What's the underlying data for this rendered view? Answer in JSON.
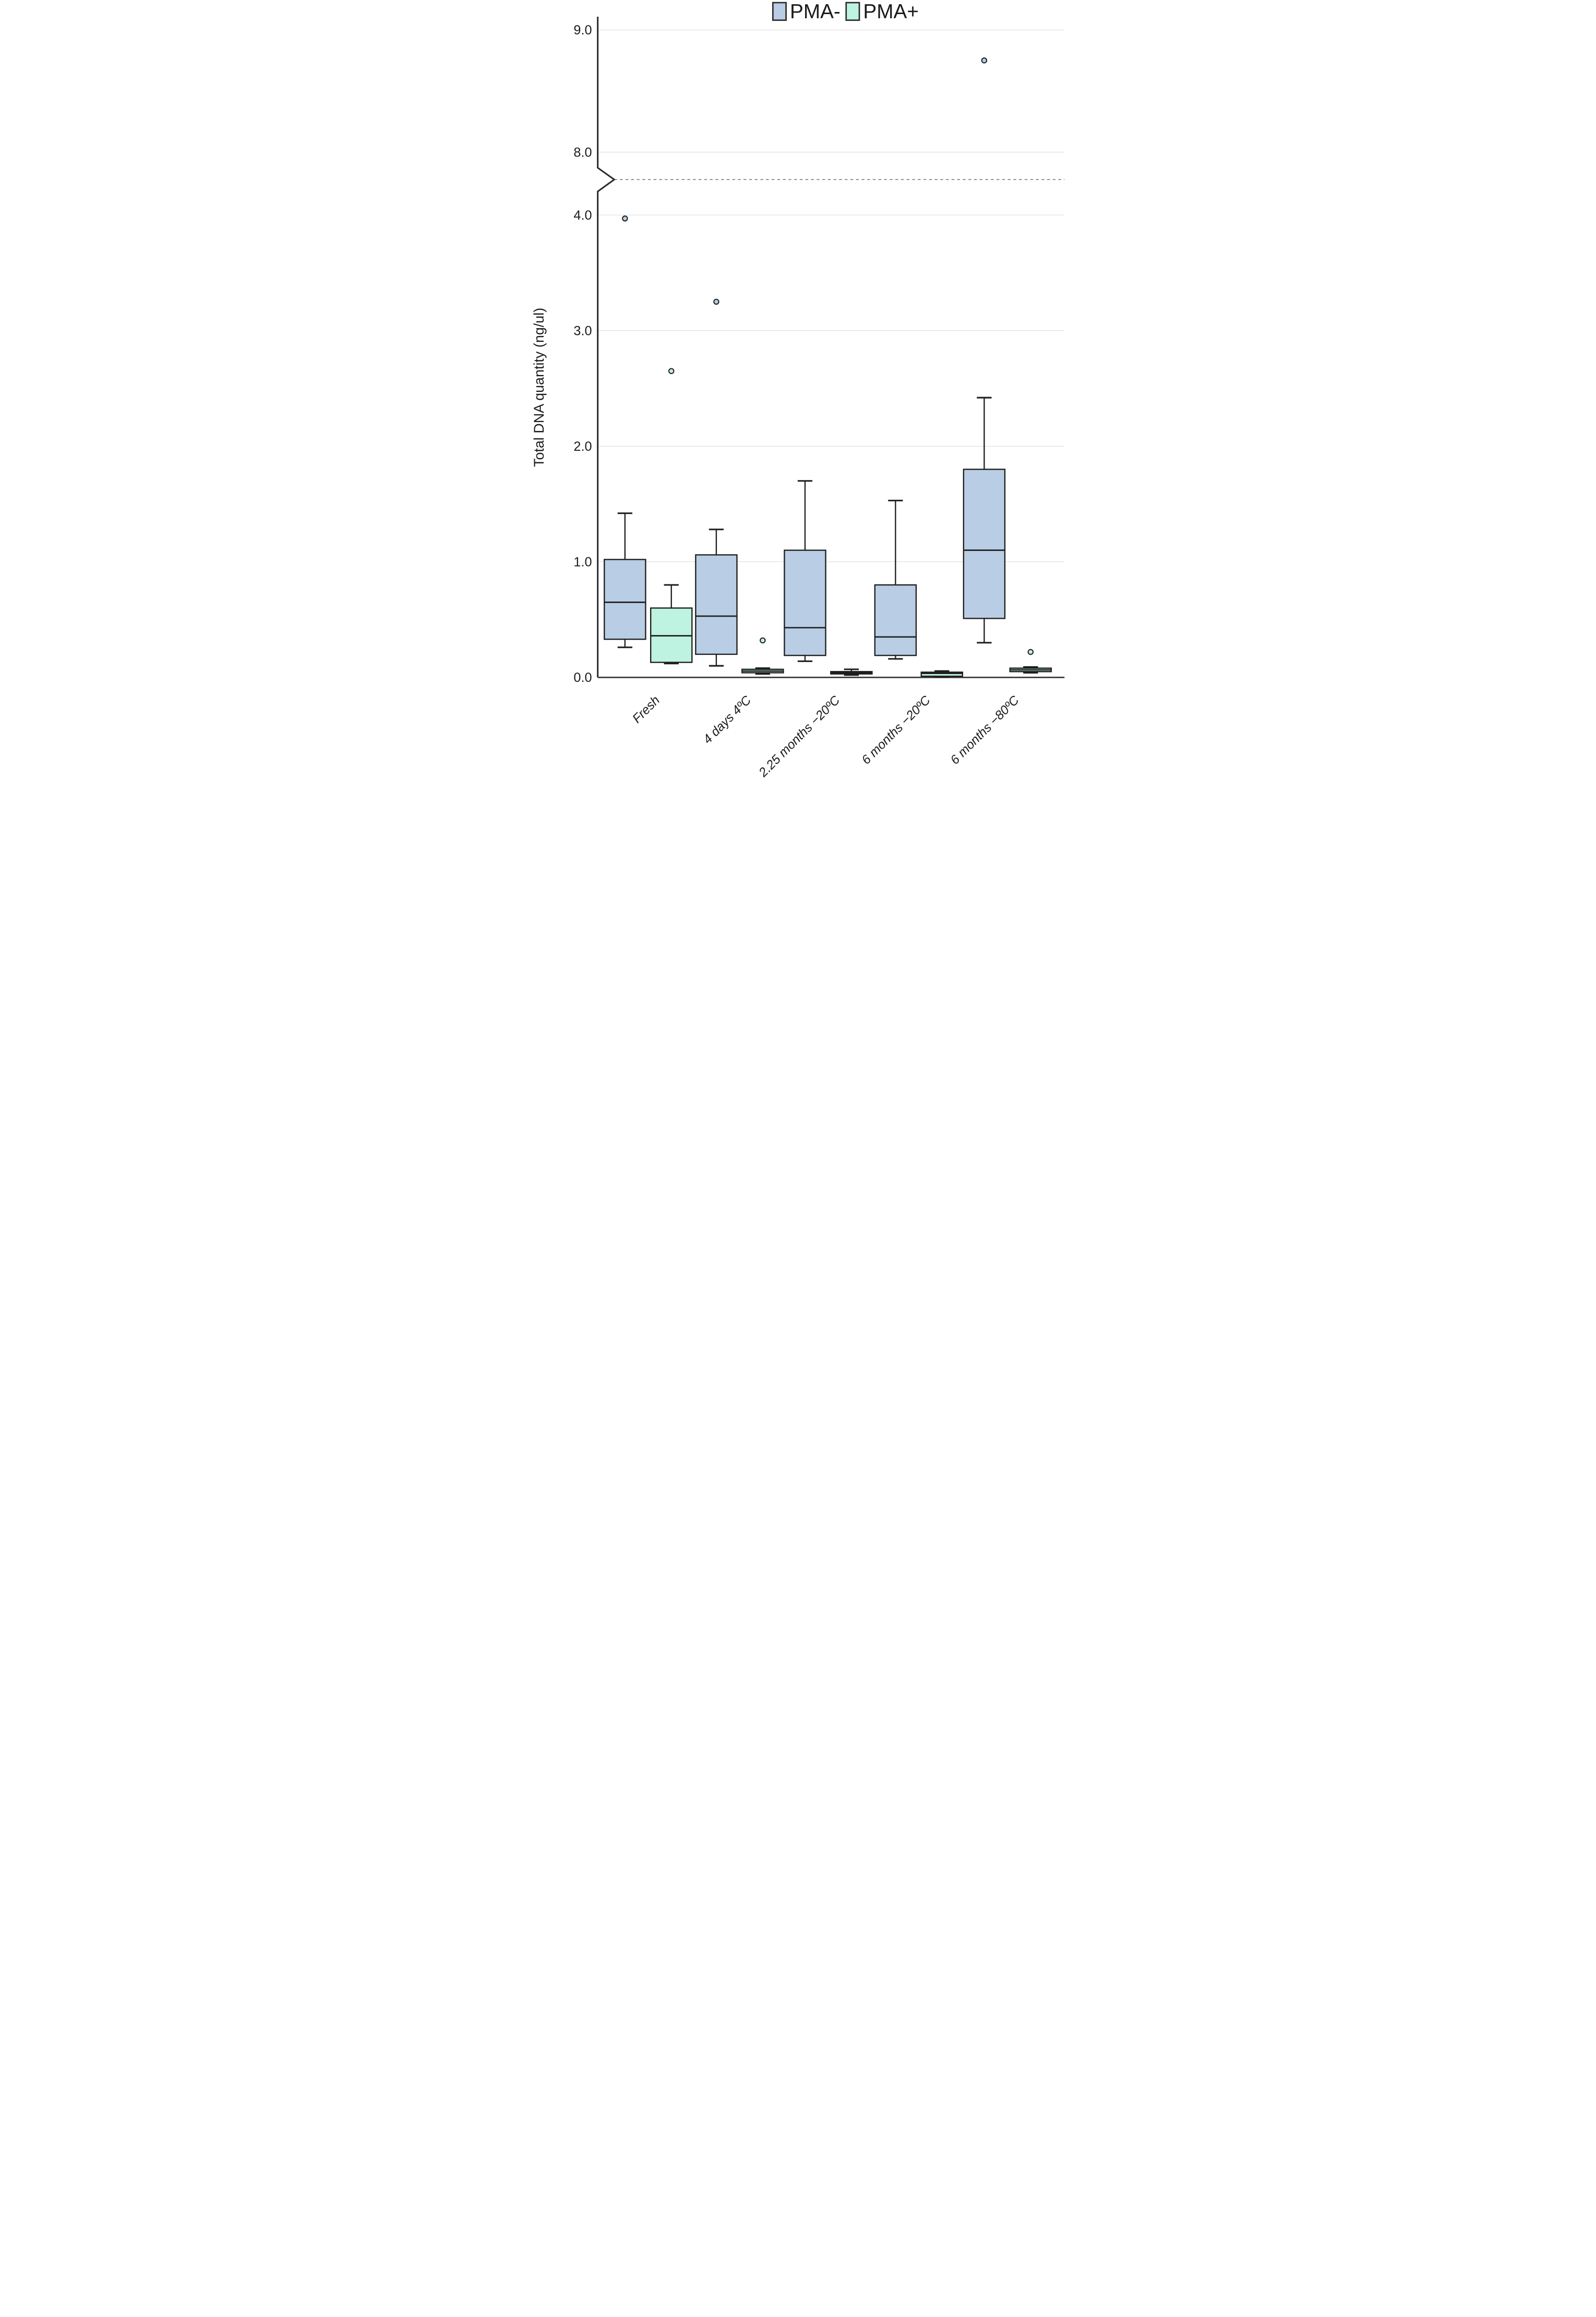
{
  "chart_data": {
    "type": "boxplot",
    "title": "",
    "ylabel": "Total DNA quantity (ng/ul)",
    "xlabel": "",
    "grid": "horizontal",
    "legend_position": "top-center",
    "axis_break": {
      "enabled": true,
      "lower_range": [
        0.0,
        4.3
      ],
      "upper_range": [
        7.8,
        9.3
      ],
      "dashed_line_at_break": true
    },
    "y_ticks_lower": [
      "0.0",
      "1.0",
      "2.0",
      "3.0",
      "4.0"
    ],
    "y_ticks_upper": [
      "8.0",
      "9.0"
    ],
    "categories": [
      "Fresh",
      "4 days 4ºC",
      "2.25 months −20ºC",
      "6 months −20ºC",
      "6 months −80ºC"
    ],
    "legend": [
      {
        "name": "PMA-",
        "color": "#b9cde4"
      },
      {
        "name": "PMA+",
        "color": "#bdf3e0"
      }
    ],
    "series": [
      {
        "name": "PMA-",
        "color": "#b9cde4",
        "boxes": [
          {
            "category": "Fresh",
            "whisker_low": 0.26,
            "q1": 0.33,
            "median": 0.65,
            "q3": 1.02,
            "whisker_high": 1.42,
            "outliers": [
              3.97
            ]
          },
          {
            "category": "4 days 4ºC",
            "whisker_low": 0.1,
            "q1": 0.2,
            "median": 0.53,
            "q3": 1.06,
            "whisker_high": 1.28,
            "outliers": [
              3.25
            ]
          },
          {
            "category": "2.25 months −20ºC",
            "whisker_low": 0.14,
            "q1": 0.19,
            "median": 0.43,
            "q3": 1.1,
            "whisker_high": 1.7,
            "outliers": []
          },
          {
            "category": "6 months −20ºC",
            "whisker_low": 0.16,
            "q1": 0.19,
            "median": 0.35,
            "q3": 0.8,
            "whisker_high": 1.53,
            "outliers": []
          },
          {
            "category": "6 months −80ºC",
            "whisker_low": 0.3,
            "q1": 0.51,
            "median": 1.1,
            "q3": 1.8,
            "whisker_high": 2.42,
            "outliers": [
              8.75
            ]
          }
        ]
      },
      {
        "name": "PMA+",
        "color": "#bdf3e0",
        "boxes": [
          {
            "category": "Fresh",
            "whisker_low": 0.12,
            "q1": 0.13,
            "median": 0.36,
            "q3": 0.6,
            "whisker_high": 0.8,
            "outliers": [
              2.65
            ]
          },
          {
            "category": "4 days 4ºC",
            "whisker_low": 0.03,
            "q1": 0.04,
            "median": 0.055,
            "q3": 0.07,
            "whisker_high": 0.08,
            "outliers": [
              0.32
            ]
          },
          {
            "category": "2.25 months −20ºC",
            "whisker_low": 0.02,
            "q1": 0.03,
            "median": 0.04,
            "q3": 0.05,
            "whisker_high": 0.07,
            "outliers": []
          },
          {
            "category": "6 months −20ºC",
            "whisker_low": 0.005,
            "q1": 0.01,
            "median": 0.035,
            "q3": 0.045,
            "whisker_high": 0.055,
            "outliers": []
          },
          {
            "category": "6 months −80ºC",
            "whisker_low": 0.04,
            "q1": 0.05,
            "median": 0.065,
            "q3": 0.08,
            "whisker_high": 0.09,
            "outliers": [
              0.22
            ]
          }
        ]
      }
    ],
    "style": {
      "box_border_color": "#1e1e1e",
      "gridline_color": "#d9d9d9",
      "axis_color": "#2b2b2b",
      "baseline_color": "#3a3a3a",
      "break_dash_color": "#555555",
      "background": "#ffffff"
    }
  }
}
